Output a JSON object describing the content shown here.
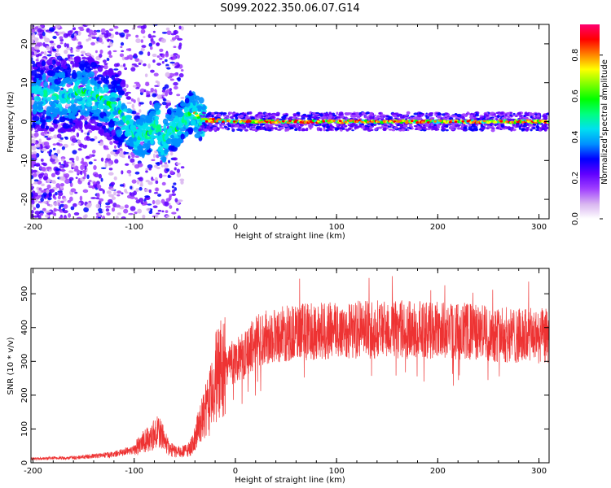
{
  "title": "S099.2022.350.06.07.G14",
  "chart_data": [
    {
      "type": "heatmap",
      "xlabel": "Height of straight line (km)",
      "ylabel": "Frequency (Hz)",
      "xlim": [
        -202,
        310
      ],
      "ylim": [
        -25,
        25
      ],
      "xticks": [
        -200,
        -100,
        0,
        100,
        200,
        300
      ],
      "yticks": [
        -20,
        -10,
        0,
        10,
        20
      ],
      "grid": false,
      "colorbar": {
        "label": "Normalized spectral amplitude",
        "ticks": [
          0.0,
          0.2,
          0.4,
          0.6,
          0.8
        ],
        "range": [
          0,
          0.95
        ],
        "colors": [
          "#ffffff",
          "#d8b4f0",
          "#a040ff",
          "#6000ff",
          "#0000ff",
          "#0090ff",
          "#00e0f0",
          "#00ff80",
          "#00ff00",
          "#80ff00",
          "#ffff00",
          "#ff8000",
          "#ff0000",
          "#ff0070"
        ]
      },
      "ridge": [
        {
          "x": -165,
          "y": 6.5
        },
        {
          "x": -150,
          "y": 8
        },
        {
          "x": -140,
          "y": 7
        },
        {
          "x": -128,
          "y": 5
        },
        {
          "x": -115,
          "y": 3
        },
        {
          "x": -105,
          "y": -1
        },
        {
          "x": -95,
          "y": -4
        },
        {
          "x": -85,
          "y": -3
        },
        {
          "x": -78,
          "y": 0
        },
        {
          "x": -72,
          "y": -6
        },
        {
          "x": -65,
          "y": -2
        },
        {
          "x": -58,
          "y": -2
        },
        {
          "x": -50,
          "y": 1
        },
        {
          "x": -42,
          "y": 3
        },
        {
          "x": -35,
          "y": 0.5
        },
        {
          "x": 0,
          "y": 0
        },
        {
          "x": 310,
          "y": 0
        }
      ]
    },
    {
      "type": "line",
      "xlabel": "Height of straight line (km)",
      "ylabel": "SNR (10 * v/v)",
      "xlim": [
        -202,
        310
      ],
      "ylim": [
        0,
        575
      ],
      "xticks": [
        -200,
        -100,
        0,
        100,
        200,
        300
      ],
      "yticks": [
        0,
        100,
        200,
        300,
        400,
        500
      ],
      "color": "#ee3333",
      "envelope": [
        {
          "x": -200,
          "y": 12
        },
        {
          "x": -160,
          "y": 15
        },
        {
          "x": -120,
          "y": 25
        },
        {
          "x": -100,
          "y": 40
        },
        {
          "x": -85,
          "y": 75
        },
        {
          "x": -75,
          "y": 95
        },
        {
          "x": -65,
          "y": 40
        },
        {
          "x": -55,
          "y": 30
        },
        {
          "x": -45,
          "y": 40
        },
        {
          "x": -35,
          "y": 110
        },
        {
          "x": -25,
          "y": 180
        },
        {
          "x": -20,
          "y": 250
        },
        {
          "x": -10,
          "y": 290
        },
        {
          "x": 0,
          "y": 300
        },
        {
          "x": 10,
          "y": 320
        },
        {
          "x": 20,
          "y": 360
        },
        {
          "x": 40,
          "y": 380
        },
        {
          "x": 80,
          "y": 390
        },
        {
          "x": 150,
          "y": 395
        },
        {
          "x": 220,
          "y": 390
        },
        {
          "x": 280,
          "y": 375
        },
        {
          "x": 310,
          "y": 375
        }
      ]
    }
  ]
}
